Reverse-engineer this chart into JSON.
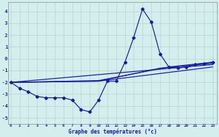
{
  "xlabel": "Graphe des températures (°c)",
  "background_color": "#d4eeed",
  "grid_color": "#b8d8d5",
  "line_color": "#1a1aaa",
  "x_ticks": [
    0,
    1,
    2,
    3,
    4,
    5,
    6,
    7,
    8,
    9,
    10,
    11,
    12,
    13,
    14,
    15,
    16,
    17,
    18,
    19,
    20,
    21,
    22,
    23
  ],
  "ylim": [
    -5.5,
    4.8
  ],
  "xlim": [
    -0.3,
    23.5
  ],
  "yticks": [
    -5,
    -4,
    -3,
    -2,
    -1,
    0,
    1,
    2,
    3,
    4
  ],
  "main_series_x": [
    0,
    1,
    2,
    3,
    4,
    5,
    6,
    7,
    8,
    9,
    10,
    11,
    12,
    13,
    14,
    15,
    16,
    17,
    18,
    19,
    20,
    21,
    22,
    23
  ],
  "main_series_y": [
    -2.0,
    -2.5,
    -2.8,
    -3.2,
    -3.3,
    -3.3,
    -3.3,
    -3.5,
    -4.3,
    -4.5,
    -3.5,
    -1.9,
    -1.9,
    -0.3,
    1.8,
    4.2,
    3.1,
    0.4,
    -0.7,
    -0.8,
    -0.7,
    -0.5,
    -0.4,
    -0.3
  ],
  "trend_lines": [
    {
      "x": [
        0,
        23
      ],
      "y": [
        -2.0,
        -0.5
      ]
    },
    {
      "x": [
        0,
        10,
        23
      ],
      "y": [
        -2.0,
        -1.9,
        -0.7
      ]
    },
    {
      "x": [
        0,
        10,
        17,
        23
      ],
      "y": [
        -2.0,
        -1.9,
        -0.8,
        -0.4
      ]
    },
    {
      "x": [
        0,
        10,
        18,
        23
      ],
      "y": [
        -2.0,
        -1.85,
        -0.7,
        -0.3
      ]
    }
  ]
}
